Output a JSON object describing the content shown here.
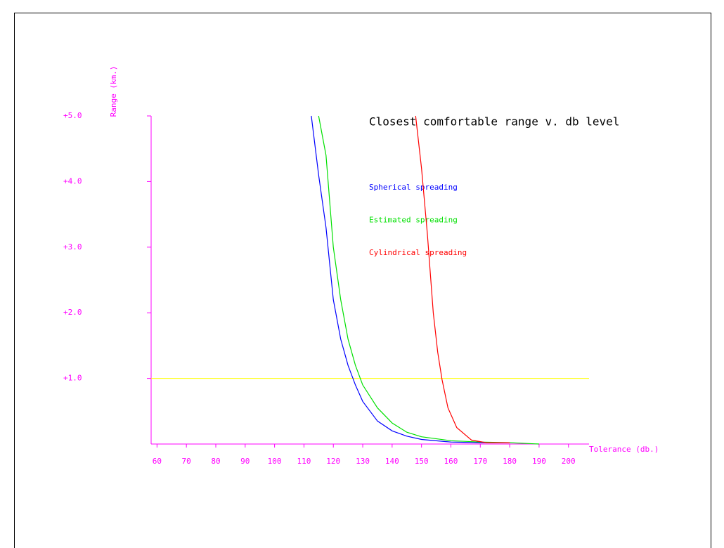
{
  "chart_data": {
    "type": "line",
    "title": "Closest comfortable range v. db level",
    "x_label": "Tolerance (db.)",
    "y_label": "Range (km.)",
    "xlim": [
      58,
      207
    ],
    "ylim": [
      0,
      5
    ],
    "xticks": [
      60,
      70,
      80,
      90,
      100,
      110,
      120,
      130,
      140,
      150,
      160,
      170,
      180,
      190,
      200
    ],
    "yticks": [
      {
        "value": 1,
        "label": "+1.0"
      },
      {
        "value": 2,
        "label": "+2.0"
      },
      {
        "value": 3,
        "label": "+3.0"
      },
      {
        "value": 4,
        "label": "+4.0"
      },
      {
        "value": 5,
        "label": "+5.0"
      }
    ],
    "axis_color": "#ff00ff",
    "threshold": {
      "value": 1,
      "color": "#ffff00"
    },
    "series": [
      {
        "name": "Spherical spreading",
        "color": "#0000ff",
        "x": [
          112.5,
          115,
          117.5,
          120,
          122.5,
          125,
          127.5,
          130,
          135,
          140,
          145,
          150,
          160,
          170,
          180
        ],
        "values": [
          5,
          4.1,
          3.3,
          2.2,
          1.6,
          1.2,
          0.9,
          0.65,
          0.35,
          0.2,
          0.12,
          0.07,
          0.03,
          0.02,
          0.02
        ]
      },
      {
        "name": "Estimated spreading",
        "color": "#00e000",
        "x": [
          115,
          117.5,
          120,
          122.5,
          125,
          127.5,
          130,
          135,
          140,
          145,
          150,
          160,
          170,
          180,
          190
        ],
        "values": [
          5,
          4.4,
          3.0,
          2.2,
          1.6,
          1.2,
          0.9,
          0.55,
          0.32,
          0.18,
          0.11,
          0.05,
          0.03,
          0.02,
          0
        ]
      },
      {
        "name": "Cylindrical spreading",
        "color": "#ff0000",
        "x": [
          148,
          150,
          152,
          154,
          155.5,
          157,
          159,
          162,
          167,
          172,
          180
        ],
        "values": [
          5,
          4.2,
          3.2,
          2.0,
          1.4,
          0.98,
          0.55,
          0.25,
          0.06,
          0.02,
          0.02
        ]
      }
    ]
  }
}
